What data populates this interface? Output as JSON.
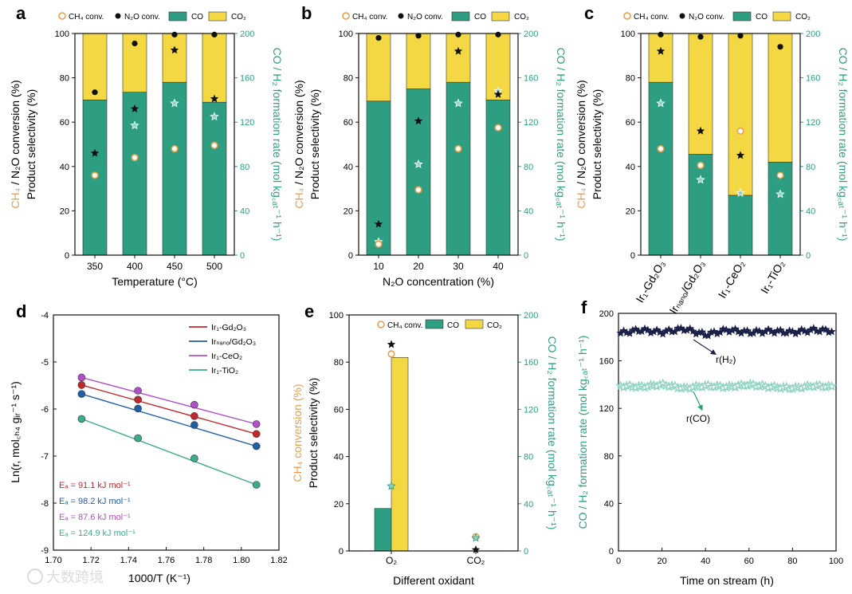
{
  "colors": {
    "co": "#2e9e82",
    "co2": "#f3d843",
    "ch4": "#e8a04a",
    "n2o": "#111111",
    "h2": "#1b2148",
    "co_star": "#8fd3c2",
    "axis_teal": "#2e9e82"
  },
  "watermark": "大数跨境",
  "panels": {
    "a": {
      "label": "a",
      "legend": {
        "ch4": "CH₄ conv.",
        "n2o": "N₂O conv.",
        "co": "CO",
        "co2": "CO₂"
      },
      "ylabel_left_ch4": "CH₄",
      "ylabel_left_sep": " / ",
      "ylabel_left_n2o": "N₂O conversion (%)",
      "ylabel_left2": "Product selectivity (%)",
      "ylabel_right": "CO / H₂ formation rate (mol kg꜀ₐₜ⁻¹ h⁻¹)",
      "xlabel": "Temperature (°C)",
      "yticks_left": [
        "0",
        "20",
        "40",
        "60",
        "80",
        "100"
      ],
      "yticks_right": [
        "0",
        "40",
        "80",
        "120",
        "160",
        "200"
      ]
    },
    "b": {
      "label": "b",
      "legend": {
        "ch4": "CH₄ conv.",
        "n2o": "N₂O conv.",
        "co": "CO",
        "co2": "CO₂"
      },
      "ylabel_left_ch4": "CH₄",
      "ylabel_left_sep": " / ",
      "ylabel_left_n2o": "N₂O conversion (%)",
      "ylabel_left2": "Product selectivity (%)",
      "ylabel_right": "CO / H₂ formation rate (mol kg꜀ₐₜ⁻¹ h⁻¹)",
      "xlabel": "N₂O concentration (%)",
      "yticks_left": [
        "0",
        "20",
        "40",
        "60",
        "80",
        "100"
      ],
      "yticks_right": [
        "0",
        "40",
        "80",
        "120",
        "160",
        "200"
      ]
    },
    "c": {
      "label": "c",
      "legend": {
        "ch4": "CH₄ conv.",
        "n2o": "N₂O conv.",
        "co": "CO",
        "co2": "CO₂"
      },
      "ylabel_left_ch4": "CH₄",
      "ylabel_left_sep": " / ",
      "ylabel_left_n2o": "N₂O conversion (%)",
      "ylabel_left2": "Product selectivity (%)",
      "ylabel_right": "CO / H₂ formation rate (mol kg꜀ₐₜ⁻¹ h⁻¹)",
      "yticks_left": [
        "0",
        "20",
        "40",
        "60",
        "80",
        "100"
      ],
      "yticks_right": [
        "0",
        "40",
        "80",
        "120",
        "160",
        "200"
      ]
    },
    "d": {
      "label": "d",
      "ylabel": "Ln(r, mol꜀ₕ₄ gᵢᵣ⁻¹ s⁻¹)",
      "xlabel": "1000/T (K⁻¹)",
      "xticks": [
        "1.70",
        "1.72",
        "1.74",
        "1.76",
        "1.78",
        "1.80",
        "1.82"
      ],
      "yticks": [
        "-4",
        "-5",
        "-6",
        "-7",
        "-8",
        "-9"
      ]
    },
    "e": {
      "label": "e",
      "legend": {
        "ch4": "CH₄ conv.",
        "co": "CO",
        "co2": "CO₂"
      },
      "ylabel_left_a": "CH₄ conversion (%)",
      "ylabel_left_b": "Product selectivity (%)",
      "ylabel_right": "CO / H₂ formation rate (mol kg꜀ₐₜ⁻¹ h⁻¹)",
      "xlabel": "Different oxidant",
      "yticks_left": [
        "0",
        "20",
        "40",
        "60",
        "80",
        "100"
      ],
      "yticks_right": [
        "0",
        "40",
        "80",
        "120",
        "160",
        "200"
      ]
    },
    "f": {
      "label": "f",
      "ylabel": "CO / H₂ formation rate (mol kg꜀ₐₜ⁻¹ h⁻¹)",
      "xlabel": "Time on stream (h)",
      "xticks": [
        "0",
        "20",
        "40",
        "60",
        "80",
        "100"
      ],
      "yticks": [
        "0",
        "40",
        "80",
        "120",
        "160",
        "200"
      ],
      "label_h2": "r(H₂)",
      "label_co": "r(CO)"
    }
  },
  "chart_data": [
    {
      "panel": "a",
      "type": "bar",
      "title": "",
      "xlabel": "Temperature (°C)",
      "ylabel": "Product selectivity (%)",
      "ylim": [
        0,
        100
      ],
      "y2lim": [
        0,
        200
      ],
      "categories": [
        "350",
        "400",
        "450",
        "500"
      ],
      "series": [
        {
          "name": "CO",
          "values": [
            70,
            73.5,
            78,
            69
          ]
        },
        {
          "name": "CO₂",
          "values": [
            30,
            26.5,
            22,
            31
          ]
        },
        {
          "name": "CH₄ conv.",
          "values": [
            36,
            44,
            48,
            49.5
          ]
        },
        {
          "name": "N₂O conv.",
          "values": [
            73.5,
            95.5,
            99.5,
            99.5
          ]
        },
        {
          "name": "H₂ rate",
          "values": [
            92,
            132,
            185,
            141
          ]
        },
        {
          "name": "CO rate",
          "values": [
            null,
            117,
            137,
            125
          ]
        }
      ]
    },
    {
      "panel": "b",
      "type": "bar",
      "title": "",
      "xlabel": "N₂O concentration (%)",
      "ylabel": "Product selectivity (%)",
      "ylim": [
        0,
        100
      ],
      "y2lim": [
        0,
        200
      ],
      "categories": [
        "10",
        "20",
        "30",
        "40"
      ],
      "series": [
        {
          "name": "CO",
          "values": [
            69.5,
            75,
            78,
            70
          ]
        },
        {
          "name": "CO₂",
          "values": [
            30.5,
            25,
            22,
            30
          ]
        },
        {
          "name": "CH₄ conv.",
          "values": [
            5,
            29.5,
            48,
            57.5
          ]
        },
        {
          "name": "N₂O conv.",
          "values": [
            98,
            99,
            99.5,
            99.5
          ]
        },
        {
          "name": "H₂ rate",
          "values": [
            28,
            121,
            184,
            145
          ]
        },
        {
          "name": "CO rate",
          "values": [
            12,
            82,
            137,
            148
          ]
        }
      ]
    },
    {
      "panel": "c",
      "type": "bar",
      "title": "",
      "xlabel": "",
      "ylabel": "Product selectivity (%)",
      "ylim": [
        0,
        100
      ],
      "y2lim": [
        0,
        200
      ],
      "categories": [
        "Ir₁-Gd₂O₃",
        "Irₙₐₙₒ/Gd₂O₃",
        "Ir₁-CeO₂",
        "Ir₁-TiO₂"
      ],
      "series": [
        {
          "name": "CO",
          "values": [
            78,
            45.5,
            27,
            42
          ]
        },
        {
          "name": "CO₂",
          "values": [
            22,
            54.5,
            73,
            58
          ]
        },
        {
          "name": "CH₄ conv.",
          "values": [
            48,
            40.5,
            56,
            36
          ]
        },
        {
          "name": "N₂O conv.",
          "values": [
            99.5,
            98.5,
            99,
            94
          ]
        },
        {
          "name": "H₂ rate",
          "values": [
            184,
            112,
            90,
            72
          ]
        },
        {
          "name": "CO rate",
          "values": [
            137,
            68,
            56,
            55
          ]
        }
      ]
    },
    {
      "panel": "d",
      "type": "scatter",
      "title": "",
      "xlabel": "1000/T (K⁻¹)",
      "ylabel": "Ln(r, mol CH4 g Ir⁻¹ s⁻¹)",
      "xlim": [
        1.7,
        1.82
      ],
      "ylim": [
        -9,
        -4
      ],
      "x": [
        1.715,
        1.745,
        1.775,
        1.808
      ],
      "series": [
        {
          "name": "Ir₁-Gd₂O₃",
          "values": [
            -5.49,
            -5.8,
            -6.15,
            -6.53
          ],
          "ea": "Eₐ = 91.1 kJ mol⁻¹"
        },
        {
          "name": "Irₙₐₙₒ/Gd₂O₃",
          "values": [
            -5.68,
            -5.99,
            -6.34,
            -6.79
          ],
          "ea": "Eₐ = 98.2 kJ mol⁻¹"
        },
        {
          "name": "Ir₁-CeO₂",
          "values": [
            -5.33,
            -5.61,
            -5.91,
            -6.32
          ],
          "ea": "Eₐ = 87.6 kJ mol⁻¹"
        },
        {
          "name": "Ir₁-TiO₂",
          "values": [
            -6.21,
            -6.62,
            -7.05,
            -7.61
          ],
          "ea": "Eₐ = 124.9 kJ mol⁻¹"
        }
      ]
    },
    {
      "panel": "e",
      "type": "bar",
      "title": "",
      "xlabel": "Different oxidant",
      "ylabel": "Product selectivity (%)",
      "ylim": [
        0,
        100
      ],
      "y2lim": [
        0,
        200
      ],
      "categories": [
        "O₂",
        "CO₂"
      ],
      "series": [
        {
          "name": "CO",
          "values": [
            18,
            0
          ]
        },
        {
          "name": "CO₂",
          "values": [
            82,
            0
          ]
        },
        {
          "name": "CH₄ conv.",
          "values": [
            83.5,
            6
          ]
        },
        {
          "name": "H₂ rate",
          "values": [
            175,
            1
          ]
        },
        {
          "name": "CO rate",
          "values": [
            55,
            11
          ]
        }
      ]
    },
    {
      "panel": "f",
      "type": "scatter",
      "title": "",
      "xlabel": "Time on stream (h)",
      "ylabel": "CO / H₂ formation rate (mol kg cat⁻¹ h⁻¹)",
      "xlim": [
        0,
        100
      ],
      "ylim": [
        0,
        200
      ],
      "x": [
        0,
        10,
        20,
        30,
        40,
        50,
        60,
        70,
        80,
        90,
        100
      ],
      "series": [
        {
          "name": "r(H₂)",
          "values": [
            183,
            186,
            184,
            187,
            182,
            186,
            184,
            185,
            184,
            186,
            185
          ]
        },
        {
          "name": "r(CO)",
          "values": [
            139,
            138,
            140,
            137,
            139,
            138,
            140,
            138,
            137,
            139,
            138
          ]
        }
      ]
    }
  ]
}
